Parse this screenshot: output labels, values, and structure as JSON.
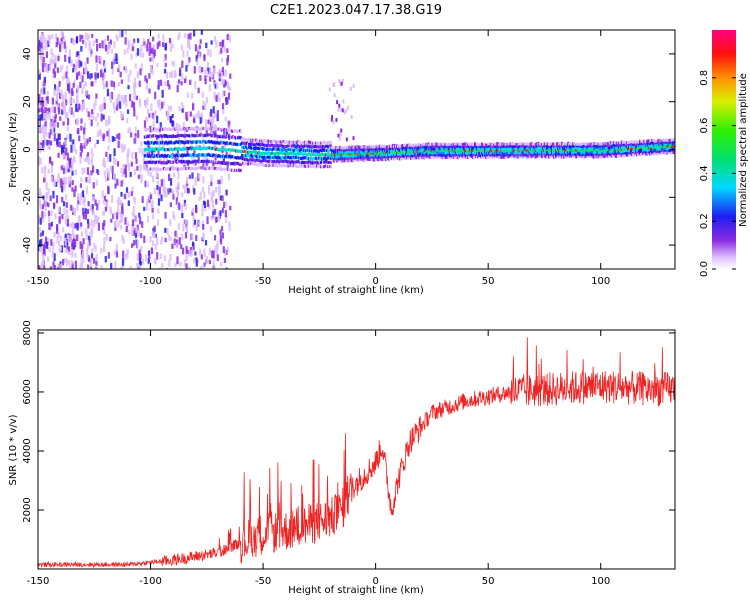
{
  "title": "C2E1.2023.047.17.38.G19",
  "chart_data": [
    {
      "type": "heatmap",
      "xlabel": "Height of straight line (km)",
      "ylabel": "Frequency (Hz)",
      "xlim": [
        -150,
        133
      ],
      "ylim": [
        -50,
        50
      ],
      "xticks": [
        -150,
        -100,
        -50,
        0,
        50,
        100
      ],
      "yticks": [
        -40,
        -20,
        0,
        20,
        40
      ],
      "colorbar": {
        "label": "Normalized spectral amplitude",
        "range": [
          0,
          1
        ],
        "ticks": [
          0.0,
          0.2,
          0.4,
          0.6,
          0.8
        ],
        "colormap": "rainbow (white-violet-blue-cyan-green-yellow-orange-red-magenta)"
      },
      "ridge": {
        "description_points": [
          {
            "x": -100,
            "freq": 0.0
          },
          {
            "x": -75,
            "freq": 0.5
          },
          {
            "x": -50,
            "freq": -1.5
          },
          {
            "x": -25,
            "freq": -2.2
          },
          {
            "x": 0,
            "freq": -1.5
          },
          {
            "x": 25,
            "freq": -0.5
          },
          {
            "x": 50,
            "freq": -0.5
          },
          {
            "x": 75,
            "freq": -0.3
          },
          {
            "x": 100,
            "freq": -0.3
          },
          {
            "x": 133,
            "freq": 1.5
          }
        ]
      }
    },
    {
      "type": "line",
      "xlabel": "Height of straight line (km)",
      "ylabel": "SNR (10 * v/v)",
      "xlim": [
        -150,
        133
      ],
      "ylim": [
        0,
        8100
      ],
      "xticks": [
        -150,
        -100,
        -50,
        0,
        50,
        100
      ],
      "yticks": [
        2000,
        4000,
        6000,
        8000
      ],
      "color": "#ee2222",
      "trend": [
        {
          "x": -150,
          "y": 150
        },
        {
          "x": -110,
          "y": 150
        },
        {
          "x": -90,
          "y": 300
        },
        {
          "x": -70,
          "y": 550
        },
        {
          "x": -60,
          "y": 900
        },
        {
          "x": -50,
          "y": 1200
        },
        {
          "x": -40,
          "y": 1300
        },
        {
          "x": -30,
          "y": 1500
        },
        {
          "x": -20,
          "y": 1700
        },
        {
          "x": -15,
          "y": 2000
        },
        {
          "x": -10,
          "y": 2800
        },
        {
          "x": -5,
          "y": 3200
        },
        {
          "x": 0,
          "y": 3600
        },
        {
          "x": 3,
          "y": 4200
        },
        {
          "x": 7,
          "y": 2000
        },
        {
          "x": 10,
          "y": 3000
        },
        {
          "x": 15,
          "y": 4300
        },
        {
          "x": 25,
          "y": 5300
        },
        {
          "x": 40,
          "y": 5700
        },
        {
          "x": 60,
          "y": 6000
        },
        {
          "x": 80,
          "y": 6100
        },
        {
          "x": 100,
          "y": 6200
        },
        {
          "x": 120,
          "y": 6100
        },
        {
          "x": 133,
          "y": 6100
        }
      ]
    }
  ]
}
